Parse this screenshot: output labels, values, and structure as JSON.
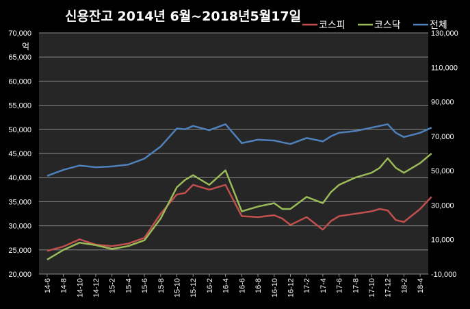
{
  "chart_data": {
    "type": "line",
    "title": "신용잔고  2014년 6월~2018년5월17일",
    "ylabel": "억",
    "y_left": {
      "range": [
        20000,
        70000
      ],
      "ticks": [
        "20,000",
        "25,000",
        "30,000",
        "35,000",
        "40,000",
        "45,000",
        "50,000",
        "55,000",
        "60,000",
        "65,000",
        "70,000"
      ]
    },
    "y_right": {
      "range": [
        -10000,
        130000
      ],
      "ticks": [
        "-10,000",
        "10,000",
        "30,000",
        "50,000",
        "70,000",
        "90,000",
        "110,000",
        "130,000"
      ]
    },
    "categories": [
      "14-6",
      "14-8",
      "14-10",
      "14-12",
      "15-2",
      "15-4",
      "15-6",
      "15-8",
      "15-10",
      "15-12",
      "16-2",
      "16-4",
      "16-6",
      "16-8",
      "16-10",
      "16-12",
      "17-2",
      "17-4",
      "17-6",
      "17-8",
      "17-10",
      "17-12",
      "18-2",
      "18-4"
    ],
    "grid": true,
    "legend_position": "top-right",
    "series": [
      {
        "name": "코스피",
        "color": "#c0504d",
        "axis": "left",
        "x": [
          0,
          1,
          2,
          3,
          4,
          5,
          6,
          7,
          8,
          8.5,
          9,
          10,
          11,
          12,
          13,
          14,
          14.5,
          15,
          16,
          17,
          17.5,
          18,
          19,
          20,
          20.5,
          21,
          21.5,
          22,
          23,
          23.7
        ],
        "values": [
          24800,
          25700,
          27200,
          26100,
          25800,
          26300,
          27500,
          32500,
          36500,
          36800,
          38500,
          37500,
          38500,
          32000,
          31800,
          32200,
          31500,
          30200,
          31800,
          29200,
          31000,
          32000,
          32500,
          33000,
          33500,
          33200,
          31200,
          30800,
          33500,
          36000
        ]
      },
      {
        "name": "코스닥",
        "color": "#9bbb59",
        "axis": "left",
        "x": [
          0,
          1,
          2,
          3,
          4,
          5,
          6,
          7,
          8,
          8.5,
          9,
          10,
          11,
          12,
          13,
          14,
          14.5,
          15,
          16,
          17,
          17.5,
          18,
          19,
          20,
          20.5,
          21,
          21.5,
          22,
          23,
          23.7
        ],
        "values": [
          23000,
          25000,
          26500,
          26000,
          25200,
          25800,
          27000,
          31500,
          38000,
          39500,
          40500,
          38500,
          41500,
          33000,
          34000,
          34700,
          33500,
          33500,
          36000,
          34700,
          37000,
          38500,
          40000,
          41000,
          42000,
          44000,
          42000,
          41000,
          43000,
          45000
        ]
      },
      {
        "name": "전체",
        "color": "#4f81bd",
        "axis": "right",
        "x": [
          0,
          1,
          2,
          3,
          4,
          5,
          6,
          7,
          8,
          8.5,
          9,
          10,
          11,
          12,
          13,
          14,
          14.5,
          15,
          16,
          17,
          17.5,
          18,
          19,
          20,
          20.5,
          21,
          21.5,
          22,
          23,
          23.7
        ],
        "values": [
          47000,
          50500,
          53000,
          52000,
          52500,
          53500,
          57000,
          64000,
          74500,
          74000,
          76000,
          73500,
          77000,
          66000,
          68000,
          67500,
          66500,
          65500,
          69000,
          67000,
          70000,
          72000,
          73000,
          75000,
          76000,
          77000,
          72000,
          69500,
          72000,
          75000
        ]
      }
    ]
  }
}
